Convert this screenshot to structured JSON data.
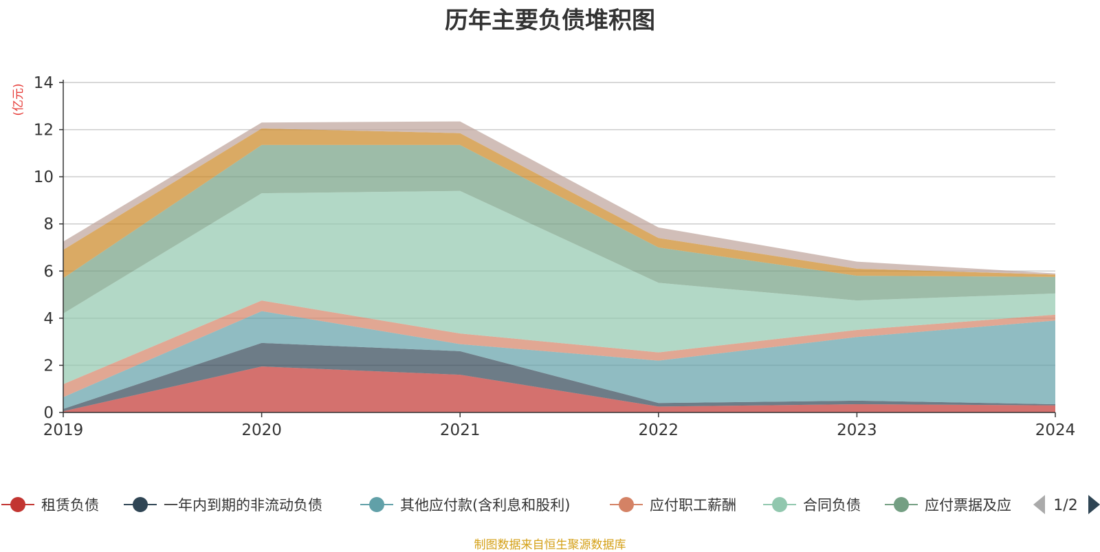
{
  "chart_data": {
    "type": "area",
    "stacked": true,
    "title": "历年主要负债堆积图",
    "ylabel": "(亿元)",
    "ylim": [
      0,
      14
    ],
    "yticks": [
      0,
      2,
      4,
      6,
      8,
      10,
      12,
      14
    ],
    "categories": [
      "2019",
      "2020",
      "2021",
      "2022",
      "2023",
      "2024"
    ],
    "grid": true,
    "series": [
      {
        "name": "租赁负债",
        "color": "#c23531",
        "values": [
          0.05,
          1.95,
          1.6,
          0.25,
          0.35,
          0.3
        ]
      },
      {
        "name": "一年内到期的非流动负债",
        "color": "#2f4554",
        "values": [
          0.1,
          1.0,
          1.0,
          0.15,
          0.15,
          0.05
        ]
      },
      {
        "name": "其他应付款(含利息和股利)",
        "color": "#61a0a8",
        "values": [
          0.5,
          1.35,
          0.3,
          1.8,
          2.7,
          3.55
        ]
      },
      {
        "name": "应付职工薪酬",
        "color": "#d48265",
        "values": [
          0.55,
          0.45,
          0.45,
          0.35,
          0.3,
          0.25
        ]
      },
      {
        "name": "合同负债",
        "color": "#91c7ae",
        "values": [
          3.0,
          4.55,
          6.05,
          2.95,
          1.25,
          0.9
        ]
      },
      {
        "name": "应付票据及应付账款",
        "color": "#749f83",
        "values": [
          1.5,
          2.05,
          1.95,
          1.5,
          1.05,
          0.7
        ]
      },
      {
        "name": "",
        "color": "#ca8622",
        "values": [
          1.2,
          0.7,
          0.5,
          0.4,
          0.3,
          0.1
        ]
      },
      {
        "name": "",
        "color": "#bda29a",
        "values": [
          0.35,
          0.25,
          0.5,
          0.45,
          0.3,
          0.05
        ]
      }
    ],
    "legend": {
      "position": "bottom",
      "visible_items": [
        "租赁负债",
        "一年内到期的非流动负债",
        "其他应付款(含利息和股利)",
        "应付职工薪酬",
        "合同负债",
        "应付票据及应"
      ],
      "page": "1/2"
    },
    "source": "制图数据来自恒生聚源数据库"
  }
}
